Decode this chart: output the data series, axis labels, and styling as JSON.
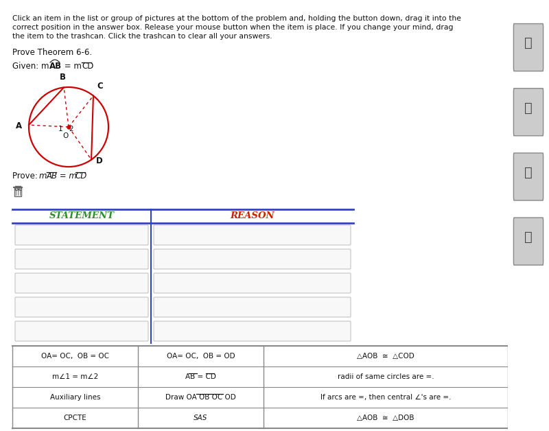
{
  "bg_color": "#ffffff",
  "top_text_lines": [
    "Click an item in the list or group of pictures at the bottom of the problem and, holding the button down, drag it into the",
    "correct position in the answer box. Release your mouse button when the item is place. If you change your mind, drag",
    "the item to the trashcan. Click the trashcan to clear all your answers."
  ],
  "theorem_text": "Prove Theorem 6-6.",
  "circle_color": "#cc0000",
  "points": {
    "A": [
      -1.0,
      0.05
    ],
    "B": [
      -0.12,
      0.993
    ],
    "C": [
      0.62,
      0.785
    ],
    "D": [
      0.57,
      -0.82
    ]
  },
  "statement_header": "STATEMENT",
  "reason_header": "REASON",
  "header_color_stmt": "#2e8b2e",
  "header_color_rsn": "#cc2200",
  "table_border_color": "#3344bb",
  "bottom_rows": [
    [
      "OA= OC,  OB = OC",
      "OA= OC,  OB = OD",
      "△AOB  ≅  △COD"
    ],
    [
      "m∠1 = m∠2",
      "AB = CD",
      "radii of same circles are =."
    ],
    [
      "Auxiliary lines",
      "Draw OA OB OC OD",
      "If arcs are =, then central ∠'s are =."
    ],
    [
      "CPCTE",
      "SAS",
      "△AOB  ≅  △DOB"
    ]
  ],
  "num_blank_rows": 5,
  "sidebar_bg": "#e8e8e8"
}
